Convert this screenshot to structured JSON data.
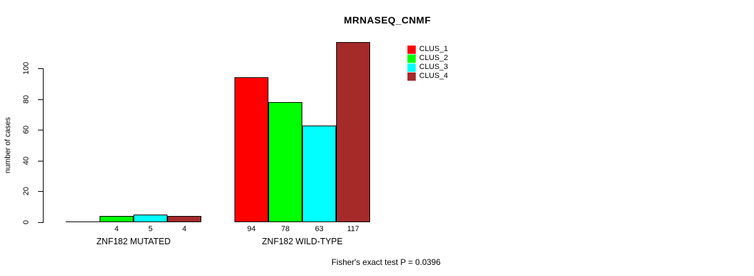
{
  "chart_data": {
    "type": "bar",
    "title": "MRNASEQ_CNMF",
    "ylabel": "number of cases",
    "yticks": [
      0,
      20,
      40,
      60,
      80,
      100
    ],
    "ylim": [
      0,
      117
    ],
    "grid": false,
    "legend_position": "top-right",
    "series": [
      {
        "name": "CLUS_1",
        "color": "#FF0000"
      },
      {
        "name": "CLUS_2",
        "color": "#00FF00"
      },
      {
        "name": "CLUS_3",
        "color": "#00FFFF"
      },
      {
        "name": "CLUS_4",
        "color": "#A52A2A"
      }
    ],
    "groups": [
      {
        "label": "ZNF182 MUTATED",
        "values": [
          0,
          4,
          5,
          4
        ],
        "value_labels": [
          "",
          "4",
          "5",
          "4"
        ]
      },
      {
        "label": "ZNF182 WILD-TYPE",
        "values": [
          94,
          78,
          63,
          117
        ],
        "value_labels": [
          "94",
          "78",
          "63",
          "117"
        ]
      }
    ],
    "footnote": "Fisher's exact test P = 0.0396"
  }
}
